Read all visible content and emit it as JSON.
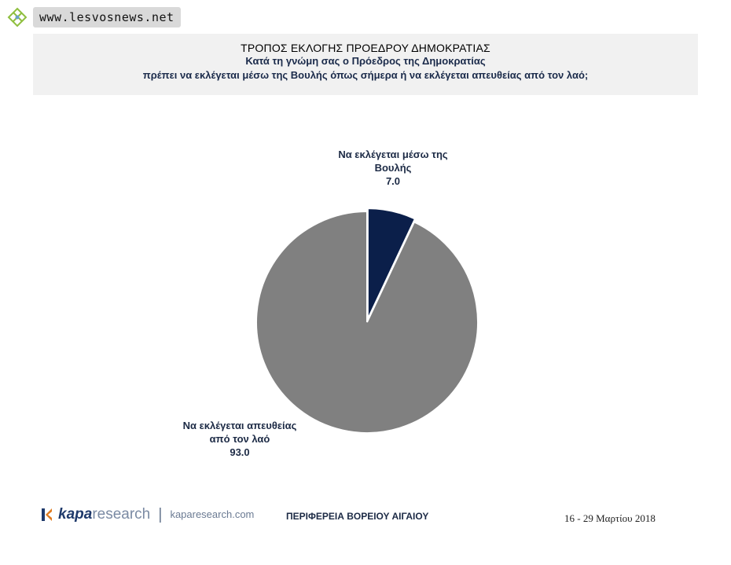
{
  "watermark": {
    "site": "www.lesvosnews.net",
    "logo_icon": "lesvosnews-logo-icon"
  },
  "header": {
    "title": "ΤΡΟΠΟΣ ΕΚΛΟΓΗΣ ΠΡΟΕΔΡΟΥ ΔΗΜΟΚΡΑΤΙΑΣ",
    "subtitle_line1": "Κατά τη γνώμη σας ο Πρόεδρος της Δημοκρατίας",
    "subtitle_line2": "πρέπει να εκλέγεται μέσω της Βουλής όπως σήμερα ή να εκλέγεται απευθείας από τον λαό;"
  },
  "chart_data": {
    "type": "pie",
    "title": "ΤΡΟΠΟΣ ΕΚΛΟΓΗΣ ΠΡΟΕΔΡΟΥ ΔΗΜΟΚΡΑΤΙΑΣ",
    "slices": [
      {
        "label_line1": "Να εκλέγεται μέσω της",
        "label_line2": "Βουλής",
        "value": 7.0,
        "value_text": "7.0",
        "color": "#0b1f4a",
        "exploded": true
      },
      {
        "label_line1": "Να εκλέγεται απευθείας",
        "label_line2": "από τον λαό",
        "value": 93.0,
        "value_text": "93.0",
        "color": "#808080",
        "exploded": false
      }
    ],
    "start_angle_deg": 0,
    "legend": "none"
  },
  "footer": {
    "brand_strong": "kapa",
    "brand_light": "research",
    "separator": "|",
    "url": "kaparesearch.com",
    "region": "ΠΕΡΙΦΕΡΕΙΑ ΒΟΡΕΙΟΥ ΑΙΓΑΙΟΥ",
    "date": "16 - 29 Μαρτίου 2018",
    "brand_color": "#1f3a6b",
    "accent_color": "#e07b1f"
  }
}
